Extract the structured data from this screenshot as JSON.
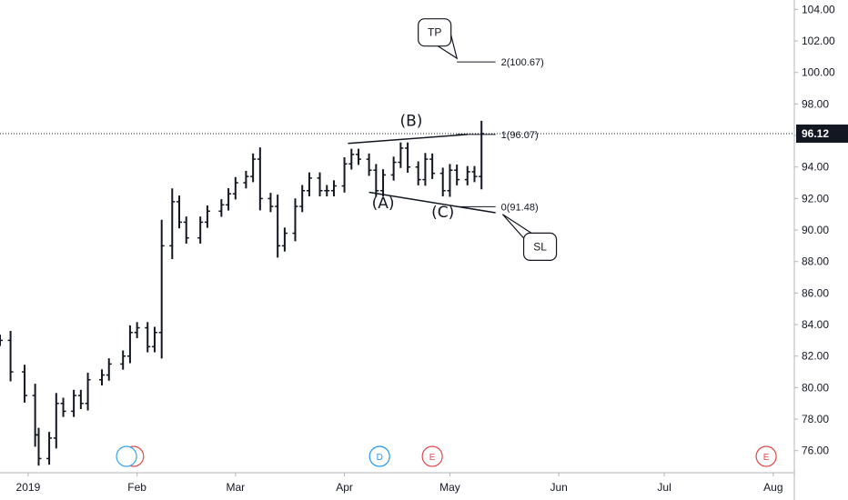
{
  "chart_data": {
    "type": "ohlc",
    "y_axis": {
      "min": 74.6,
      "max": 104.6,
      "ticks": [
        "104.00",
        "102.00",
        "100.00",
        "98.00",
        "96.00",
        "94.00",
        "92.00",
        "90.00",
        "88.00",
        "86.00",
        "84.00",
        "82.00",
        "80.00",
        "78.00",
        "76.00"
      ],
      "tick_values": [
        104,
        102,
        100,
        98,
        96,
        94,
        92,
        90,
        88,
        86,
        84,
        82,
        80,
        78,
        76
      ]
    },
    "x_axis": {
      "ticks": [
        "2019",
        "Feb",
        "Mar",
        "Apr",
        "May",
        "Jun",
        "Jul",
        "Aug"
      ],
      "tick_dates": [
        "2019-01-01",
        "2019-02-01",
        "2019-03-01",
        "2019-04-01",
        "2019-05-01",
        "2019-06-01",
        "2019-07-01",
        "2019-08-01"
      ],
      "start_date": "2018-12-24",
      "end_date": "2019-08-07"
    },
    "last_price": "96.12",
    "last_price_value": 96.12,
    "close_series": [
      {
        "date": "2018-12-24",
        "close": 83.0
      },
      {
        "date": "2018-12-27",
        "close": 81.0
      },
      {
        "date": "2018-12-31",
        "close": 79.5
      },
      {
        "date": "2019-01-03",
        "close": 77.0
      },
      {
        "date": "2019-01-04",
        "close": 75.5
      },
      {
        "date": "2019-01-07",
        "close": 76.8
      },
      {
        "date": "2019-01-09",
        "close": 79.0
      },
      {
        "date": "2019-01-11",
        "close": 78.5
      },
      {
        "date": "2019-01-14",
        "close": 79.5
      },
      {
        "date": "2019-01-16",
        "close": 79.0
      },
      {
        "date": "2019-01-18",
        "close": 80.5
      },
      {
        "date": "2019-01-22",
        "close": 80.8
      },
      {
        "date": "2019-01-24",
        "close": 81.5
      },
      {
        "date": "2019-01-28",
        "close": 82.0
      },
      {
        "date": "2019-01-30",
        "close": 83.5
      },
      {
        "date": "2019-02-01",
        "close": 83.8
      },
      {
        "date": "2019-02-04",
        "close": 82.6
      },
      {
        "date": "2019-02-06",
        "close": 83.5
      },
      {
        "date": "2019-02-08",
        "close": 89.0
      },
      {
        "date": "2019-02-11",
        "close": 91.8
      },
      {
        "date": "2019-02-13",
        "close": 90.5
      },
      {
        "date": "2019-02-15",
        "close": 89.5
      },
      {
        "date": "2019-02-19",
        "close": 90.5
      },
      {
        "date": "2019-02-21",
        "close": 91.2
      },
      {
        "date": "2019-02-25",
        "close": 91.6
      },
      {
        "date": "2019-02-27",
        "close": 92.3
      },
      {
        "date": "2019-03-01",
        "close": 93.0
      },
      {
        "date": "2019-03-04",
        "close": 93.4
      },
      {
        "date": "2019-03-06",
        "close": 94.5
      },
      {
        "date": "2019-03-08",
        "close": 92.0
      },
      {
        "date": "2019-03-11",
        "close": 91.5
      },
      {
        "date": "2019-03-13",
        "close": 89.0
      },
      {
        "date": "2019-03-15",
        "close": 89.8
      },
      {
        "date": "2019-03-18",
        "close": 91.5
      },
      {
        "date": "2019-03-20",
        "close": 92.5
      },
      {
        "date": "2019-03-22",
        "close": 93.3
      },
      {
        "date": "2019-03-25",
        "close": 92.5
      },
      {
        "date": "2019-03-27",
        "close": 92.5
      },
      {
        "date": "2019-03-29",
        "close": 92.8
      },
      {
        "date": "2019-04-01",
        "close": 94.2
      },
      {
        "date": "2019-04-03",
        "close": 94.8
      },
      {
        "date": "2019-04-05",
        "close": 94.5
      },
      {
        "date": "2019-04-08",
        "close": 93.8
      },
      {
        "date": "2019-04-10",
        "close": 92.5
      },
      {
        "date": "2019-04-12",
        "close": 93.5
      },
      {
        "date": "2019-04-15",
        "close": 94.3
      },
      {
        "date": "2019-04-17",
        "close": 95.2
      },
      {
        "date": "2019-04-19",
        "close": 94.0
      },
      {
        "date": "2019-04-22",
        "close": 93.2
      },
      {
        "date": "2019-04-24",
        "close": 94.5
      },
      {
        "date": "2019-04-26",
        "close": 93.6
      },
      {
        "date": "2019-04-29",
        "close": 92.5
      },
      {
        "date": "2019-05-01",
        "close": 93.8
      },
      {
        "date": "2019-05-03",
        "close": 93.2
      },
      {
        "date": "2019-05-06",
        "close": 93.7
      },
      {
        "date": "2019-05-08",
        "close": 93.4
      },
      {
        "date": "2019-05-10",
        "close": 96.12
      }
    ],
    "annotations": {
      "wave_labels": [
        {
          "text": "(A)",
          "date": "2019-04-12",
          "price": 91.4
        },
        {
          "text": "(B)",
          "date": "2019-04-20",
          "price": 96.6
        },
        {
          "text": "(C)",
          "date": "2019-04-29",
          "price": 90.8
        }
      ],
      "fib_levels": [
        {
          "label": "2(100.67)",
          "price": 100.67
        },
        {
          "label": "1(96.07)",
          "price": 96.07
        },
        {
          "label": "0(91.48)",
          "price": 91.48
        }
      ],
      "callouts": [
        {
          "text": "TP",
          "price": 102.6
        },
        {
          "text": "SL",
          "price": 89.0
        }
      ],
      "trendlines": [
        {
          "from": {
            "date": "2019-04-02",
            "price": 95.5
          },
          "to": {
            "date": "2019-05-06",
            "price": 96.07
          }
        },
        {
          "from": {
            "date": "2019-04-08",
            "price": 92.4
          },
          "to": {
            "date": "2019-05-14",
            "price": 91.1
          }
        }
      ]
    },
    "events": [
      {
        "label": "E",
        "kind": "earnings",
        "date": "2019-01-31",
        "color": "#e04848"
      },
      {
        "label": "",
        "kind": "dividend",
        "date": "2019-01-29",
        "color": "#3aa0ec"
      },
      {
        "label": "D",
        "kind": "dividend",
        "date": "2019-04-11",
        "color": "#2196f3"
      },
      {
        "label": "E",
        "kind": "earnings",
        "date": "2019-04-26",
        "color": "#e04848"
      },
      {
        "label": "E",
        "kind": "earnings",
        "date": "2019-07-30",
        "color": "#e04848"
      }
    ],
    "colors": {
      "bars": "#131722",
      "price_badge_bg": "#131722",
      "price_line": "#131722",
      "axis_text": "#131722",
      "grid_line": "#e0e3eb"
    }
  }
}
